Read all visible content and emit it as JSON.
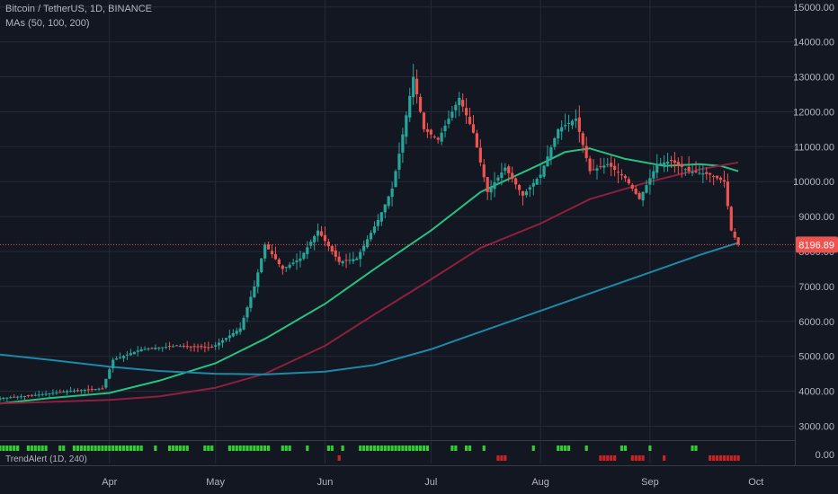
{
  "header": {
    "symbol": "Bitcoin / TetherUS, 1D, BINANCE",
    "ma_label": "MAs (50, 100, 200)",
    "indicator_label": "TrendAlert (1D, 240)"
  },
  "colors": {
    "background": "#131722",
    "grid": "#262a36",
    "up": "#26a69a",
    "down": "#ef5350",
    "ma50": "#26c281",
    "ma100": "#8e1f3f",
    "ma200": "#1e88a8",
    "price_line": "#ef5350",
    "alert_green": "#33cc33",
    "alert_red": "#cc2222"
  },
  "chart_data": {
    "type": "line",
    "title": "Bitcoin / TetherUS, 1D, BINANCE",
    "y_axis": {
      "ylim": [
        2600,
        15200
      ],
      "ticks": [
        "3000.00",
        "4000.00",
        "5000.00",
        "6000.00",
        "7000.00",
        "8000.00",
        "9000.00",
        "10000.00",
        "11000.00",
        "12000.00",
        "13000.00",
        "14000.00",
        "15000.00"
      ]
    },
    "x_axis": {
      "start_date": "2019-03-01",
      "end_date": "2019-10-12",
      "ticks": [
        "Apr",
        "May",
        "Jun",
        "Jul",
        "Aug",
        "Sep",
        "Oct"
      ]
    },
    "last_price": "8196.89",
    "last_price_value": 8196.89,
    "price_series": {
      "name": "Bitcoin / TetherUS",
      "points": [
        [
          "2019-03-01",
          3800
        ],
        [
          "2019-03-10",
          3880
        ],
        [
          "2019-03-20",
          4000
        ],
        [
          "2019-03-30",
          4080
        ],
        [
          "2019-04-02",
          4900
        ],
        [
          "2019-04-10",
          5200
        ],
        [
          "2019-04-20",
          5300
        ],
        [
          "2019-04-30",
          5250
        ],
        [
          "2019-05-08",
          5800
        ],
        [
          "2019-05-12",
          7000
        ],
        [
          "2019-05-15",
          8200
        ],
        [
          "2019-05-20",
          7500
        ],
        [
          "2019-05-25",
          7800
        ],
        [
          "2019-05-30",
          8600
        ],
        [
          "2019-06-05",
          7700
        ],
        [
          "2019-06-10",
          7800
        ],
        [
          "2019-06-16",
          8900
        ],
        [
          "2019-06-20",
          9800
        ],
        [
          "2019-06-22",
          10800
        ],
        [
          "2019-06-26",
          13000
        ],
        [
          "2019-06-29",
          11500
        ],
        [
          "2019-07-03",
          11200
        ],
        [
          "2019-07-09",
          12400
        ],
        [
          "2019-07-13",
          11400
        ],
        [
          "2019-07-17",
          9700
        ],
        [
          "2019-07-22",
          10400
        ],
        [
          "2019-07-27",
          9600
        ],
        [
          "2019-08-01",
          10200
        ],
        [
          "2019-08-06",
          11500
        ],
        [
          "2019-08-11",
          11800
        ],
        [
          "2019-08-15",
          10300
        ],
        [
          "2019-08-20",
          10500
        ],
        [
          "2019-08-25",
          10100
        ],
        [
          "2019-08-29",
          9500
        ],
        [
          "2019-09-03",
          10500
        ],
        [
          "2019-09-07",
          10600
        ],
        [
          "2019-09-12",
          10300
        ],
        [
          "2019-09-18",
          10200
        ],
        [
          "2019-09-22",
          10000
        ],
        [
          "2019-09-24",
          8600
        ],
        [
          "2019-09-26",
          8196.89
        ]
      ]
    },
    "series": [
      {
        "name": "MA 50",
        "points": [
          [
            "2019-03-01",
            3650
          ],
          [
            "2019-03-15",
            3800
          ],
          [
            "2019-04-01",
            3950
          ],
          [
            "2019-04-15",
            4300
          ],
          [
            "2019-05-01",
            4800
          ],
          [
            "2019-05-15",
            5500
          ],
          [
            "2019-06-01",
            6500
          ],
          [
            "2019-06-15",
            7500
          ],
          [
            "2019-07-01",
            8600
          ],
          [
            "2019-07-15",
            9700
          ],
          [
            "2019-08-01",
            10500
          ],
          [
            "2019-08-08",
            10850
          ],
          [
            "2019-08-15",
            10950
          ],
          [
            "2019-08-25",
            10650
          ],
          [
            "2019-09-05",
            10450
          ],
          [
            "2019-09-15",
            10500
          ],
          [
            "2019-09-21",
            10450
          ],
          [
            "2019-09-26",
            10300
          ]
        ]
      },
      {
        "name": "MA 100",
        "points": [
          [
            "2019-03-01",
            3650
          ],
          [
            "2019-04-01",
            3750
          ],
          [
            "2019-04-15",
            3850
          ],
          [
            "2019-05-01",
            4100
          ],
          [
            "2019-05-15",
            4500
          ],
          [
            "2019-06-01",
            5300
          ],
          [
            "2019-06-15",
            6200
          ],
          [
            "2019-07-01",
            7200
          ],
          [
            "2019-07-15",
            8100
          ],
          [
            "2019-08-01",
            8800
          ],
          [
            "2019-08-15",
            9500
          ],
          [
            "2019-09-01",
            10000
          ],
          [
            "2019-09-15",
            10350
          ],
          [
            "2019-09-26",
            10550
          ]
        ]
      },
      {
        "name": "MA 200",
        "points": [
          [
            "2019-03-01",
            5050
          ],
          [
            "2019-03-15",
            4900
          ],
          [
            "2019-04-01",
            4700
          ],
          [
            "2019-04-15",
            4580
          ],
          [
            "2019-05-01",
            4500
          ],
          [
            "2019-05-15",
            4480
          ],
          [
            "2019-06-01",
            4560
          ],
          [
            "2019-06-15",
            4750
          ],
          [
            "2019-07-01",
            5200
          ],
          [
            "2019-07-15",
            5700
          ],
          [
            "2019-08-01",
            6300
          ],
          [
            "2019-08-15",
            6800
          ],
          [
            "2019-09-01",
            7400
          ],
          [
            "2019-09-15",
            7900
          ],
          [
            "2019-09-26",
            8250
          ]
        ]
      }
    ],
    "trend_alert": {
      "name": "TrendAlert (1D, 240)",
      "green_ranges": [
        [
          "2019-03-01",
          "2019-03-06"
        ],
        [
          "2019-03-09",
          "2019-03-14"
        ],
        [
          "2019-03-18",
          "2019-03-19"
        ],
        [
          "2019-03-22",
          "2019-04-10"
        ],
        [
          "2019-04-14",
          "2019-04-14"
        ],
        [
          "2019-04-18",
          "2019-04-23"
        ],
        [
          "2019-04-28",
          "2019-04-30"
        ],
        [
          "2019-05-05",
          "2019-05-16"
        ],
        [
          "2019-05-20",
          "2019-05-22"
        ],
        [
          "2019-05-27",
          "2019-05-27"
        ],
        [
          "2019-06-02",
          "2019-06-03"
        ],
        [
          "2019-06-06",
          "2019-06-06"
        ],
        [
          "2019-06-11",
          "2019-06-30"
        ],
        [
          "2019-07-07",
          "2019-07-08"
        ],
        [
          "2019-07-11",
          "2019-07-12"
        ],
        [
          "2019-07-16",
          "2019-07-16"
        ],
        [
          "2019-07-30",
          "2019-07-30"
        ],
        [
          "2019-08-06",
          "2019-08-09"
        ],
        [
          "2019-08-14",
          "2019-08-14"
        ],
        [
          "2019-08-24",
          "2019-08-25"
        ],
        [
          "2019-09-01",
          "2019-09-01"
        ],
        [
          "2019-09-13",
          "2019-09-14"
        ]
      ],
      "red_ranges": [
        [
          "2019-06-05",
          "2019-06-05"
        ],
        [
          "2019-07-20",
          "2019-07-22"
        ],
        [
          "2019-08-18",
          "2019-08-22"
        ],
        [
          "2019-08-27",
          "2019-08-30"
        ],
        [
          "2019-09-05",
          "2019-09-05"
        ],
        [
          "2019-09-18",
          "2019-09-26"
        ]
      ],
      "value": "0.00"
    }
  }
}
